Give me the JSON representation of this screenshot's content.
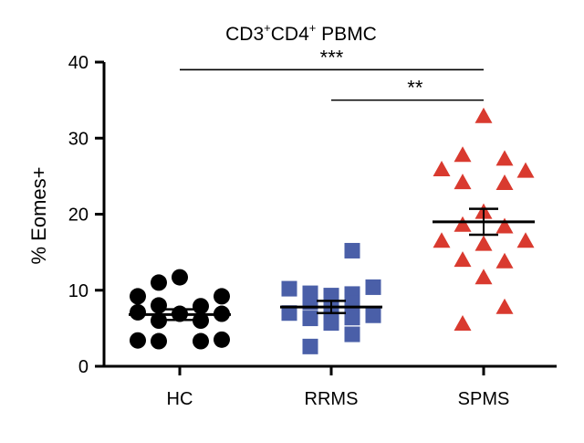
{
  "chart_data": {
    "type": "scatter",
    "title_parts": [
      {
        "text": "CD3",
        "sup": false
      },
      {
        "text": "+",
        "sup": true
      },
      {
        "text": "CD4",
        "sup": false
      },
      {
        "text": "+",
        "sup": true
      },
      {
        "text": " PBMC",
        "sup": false
      }
    ],
    "ylabel": "% Eomes+",
    "xlabel": "",
    "ylim": [
      0,
      40
    ],
    "yticks": [
      0,
      10,
      20,
      30,
      40
    ],
    "categories": [
      "HC",
      "RRMS",
      "SPMS"
    ],
    "series": [
      {
        "name": "HC",
        "marker": "circle",
        "color": "#000000",
        "mean": 6.8,
        "sem": 0.7,
        "points": [
          {
            "offset": 0,
            "y": 11.7
          },
          {
            "offset": -1,
            "y": 11.0
          },
          {
            "offset": -2,
            "y": 9.2
          },
          {
            "offset": 2,
            "y": 9.2
          },
          {
            "offset": -1,
            "y": 8.0
          },
          {
            "offset": 1,
            "y": 7.9
          },
          {
            "offset": -2,
            "y": 7.1
          },
          {
            "offset": 0,
            "y": 6.9
          },
          {
            "offset": 2,
            "y": 6.9
          },
          {
            "offset": -1,
            "y": 6.0
          },
          {
            "offset": 1,
            "y": 6.0
          },
          {
            "offset": -2,
            "y": 3.4
          },
          {
            "offset": -1,
            "y": 3.3
          },
          {
            "offset": 1,
            "y": 3.3
          },
          {
            "offset": 2,
            "y": 3.5
          }
        ]
      },
      {
        "name": "RRMS",
        "marker": "square",
        "color": "#4a5fa8",
        "mean": 7.8,
        "sem": 0.8,
        "points": [
          {
            "offset": 1,
            "y": 15.2
          },
          {
            "offset": -2,
            "y": 10.2
          },
          {
            "offset": 2,
            "y": 10.4
          },
          {
            "offset": -1,
            "y": 9.6
          },
          {
            "offset": 1,
            "y": 9.5
          },
          {
            "offset": 0,
            "y": 9.3
          },
          {
            "offset": 0,
            "y": 8.7
          },
          {
            "offset": -1,
            "y": 8.4
          },
          {
            "offset": 1,
            "y": 8.3
          },
          {
            "offset": -2,
            "y": 7.0
          },
          {
            "offset": 0,
            "y": 6.6
          },
          {
            "offset": 2,
            "y": 6.7
          },
          {
            "offset": -1,
            "y": 6.3
          },
          {
            "offset": 1,
            "y": 6.4
          },
          {
            "offset": 0,
            "y": 5.7
          },
          {
            "offset": 1,
            "y": 4.2
          },
          {
            "offset": -1,
            "y": 2.6
          }
        ]
      },
      {
        "name": "SPMS",
        "marker": "triangle",
        "color": "#d93a2f",
        "mean": 19.0,
        "sem": 1.7,
        "points": [
          {
            "offset": 0,
            "y": 32.8
          },
          {
            "offset": -1,
            "y": 27.7
          },
          {
            "offset": 1,
            "y": 27.2
          },
          {
            "offset": -2,
            "y": 25.8
          },
          {
            "offset": 2,
            "y": 25.6
          },
          {
            "offset": -1,
            "y": 24.1
          },
          {
            "offset": 1,
            "y": 24.0
          },
          {
            "offset": 0,
            "y": 20.2
          },
          {
            "offset": -1,
            "y": 18.5
          },
          {
            "offset": 1,
            "y": 18.3
          },
          {
            "offset": -2,
            "y": 16.4
          },
          {
            "offset": 2,
            "y": 16.4
          },
          {
            "offset": 0,
            "y": 16.0
          },
          {
            "offset": -1,
            "y": 13.9
          },
          {
            "offset": 1,
            "y": 13.7
          },
          {
            "offset": 0,
            "y": 11.6
          },
          {
            "offset": 1,
            "y": 7.7
          },
          {
            "offset": -1,
            "y": 5.5
          }
        ]
      }
    ],
    "comparisons": [
      {
        "from": "HC",
        "to": "SPMS",
        "y": 39.0,
        "label": "***"
      },
      {
        "from": "RRMS",
        "to": "SPMS",
        "y": 35.0,
        "label": "**"
      }
    ]
  }
}
